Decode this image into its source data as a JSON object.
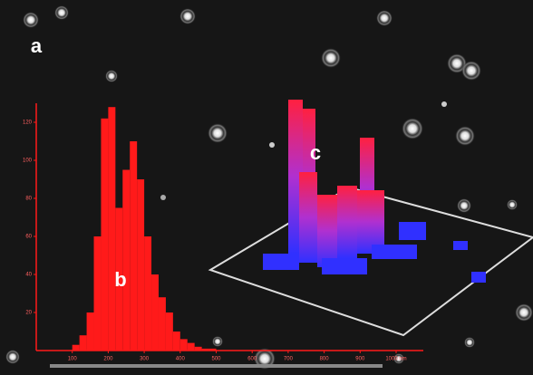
{
  "chart_data": {
    "type": "histogram",
    "bins": [
      100,
      120,
      140,
      160,
      180,
      200,
      220,
      240,
      260,
      280,
      300,
      320,
      340,
      360,
      380,
      400,
      420,
      440,
      460,
      480,
      500
    ],
    "values": [
      3,
      8,
      20,
      60,
      122,
      128,
      75,
      95,
      110,
      90,
      60,
      40,
      28,
      20,
      10,
      6,
      4,
      2,
      1,
      1
    ],
    "color": "#ff1a1a",
    "xlim": [
      0,
      1000
    ],
    "xticks": [
      100,
      200,
      300,
      400,
      500,
      600,
      700,
      800,
      900,
      {
        "value": 1000,
        "label": "1000 nm"
      }
    ],
    "ylim": [
      0,
      130
    ],
    "yticks": [
      20,
      40,
      60,
      80,
      100,
      120
    ],
    "annotations": [
      "a",
      "b",
      "c"
    ]
  }
}
